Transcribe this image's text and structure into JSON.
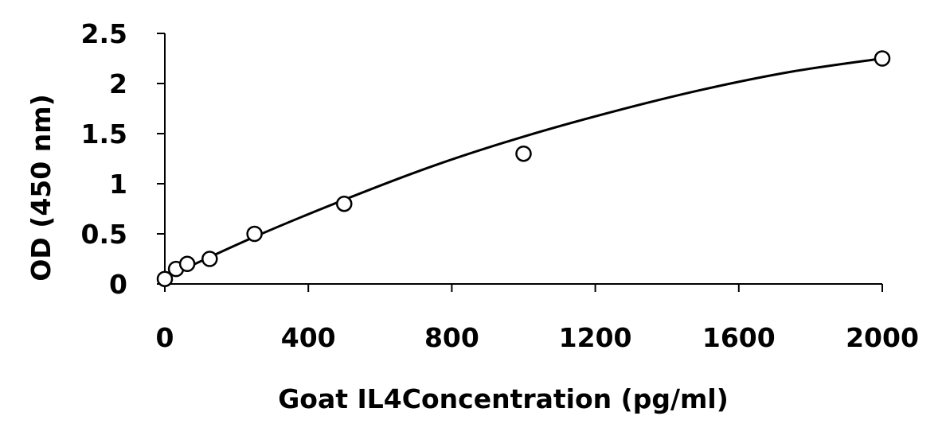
{
  "chart_data": {
    "type": "scatter",
    "title": "",
    "xlabel": "Goat IL4Concentration (pg/ml)",
    "ylabel": "OD (450 nm)",
    "xlim": [
      0,
      2000
    ],
    "ylim": [
      0,
      2.5
    ],
    "x_ticks": [
      "0",
      "400",
      "800",
      "1200",
      "1600",
      "2000"
    ],
    "y_ticks": [
      "0",
      "0.5",
      "1",
      "1.5",
      "2",
      "2.5"
    ],
    "grid": false,
    "legend": "none",
    "series": [
      {
        "style": "open-circle-markers",
        "x": [
          0,
          31.25,
          62.5,
          125,
          250,
          500,
          1000,
          2000
        ],
        "y": [
          0.05,
          0.15,
          0.2,
          0.25,
          0.5,
          0.8,
          1.3,
          2.25
        ]
      },
      {
        "style": "fitted-curve",
        "x": [
          0,
          250,
          500,
          750,
          1000,
          1250,
          1500,
          1750,
          2000
        ],
        "y": [
          0.06,
          0.47,
          0.84,
          1.18,
          1.47,
          1.72,
          1.94,
          2.12,
          2.25
        ]
      }
    ],
    "colors": {
      "marker_stroke": "#000000",
      "marker_fill": "#ffffff",
      "line": "#000000",
      "axis": "#000000"
    }
  }
}
